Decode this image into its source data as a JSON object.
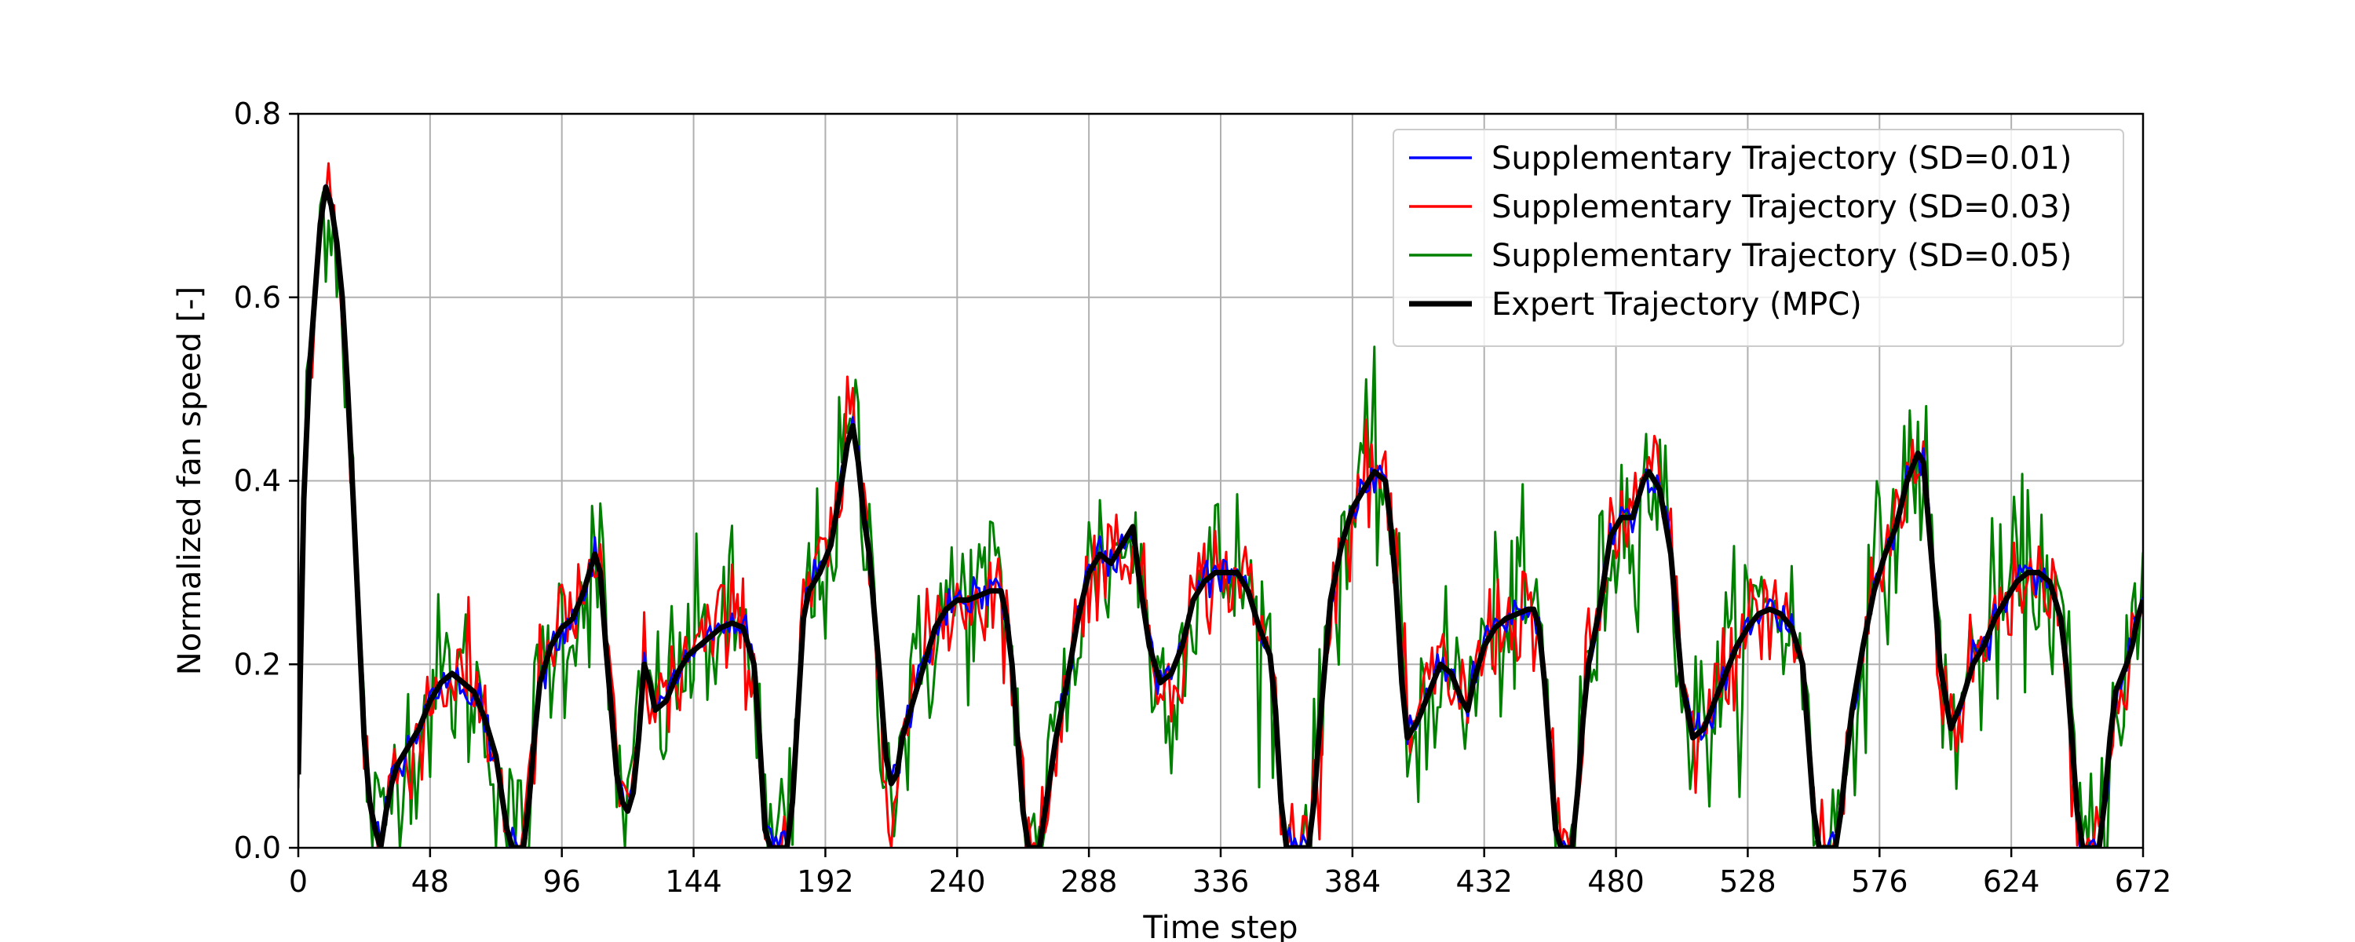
{
  "chart_data": {
    "type": "line",
    "title": "",
    "xlabel": "Time step",
    "ylabel": "Normalized fan speed [-]",
    "xlim": [
      0,
      672
    ],
    "ylim": [
      0,
      0.8
    ],
    "x_ticks": [
      0,
      48,
      96,
      144,
      192,
      240,
      288,
      336,
      384,
      432,
      480,
      528,
      576,
      624,
      672
    ],
    "y_ticks": [
      0.0,
      0.2,
      0.4,
      0.6,
      0.8
    ],
    "x_tick_labels": [
      "0",
      "48",
      "96",
      "144",
      "192",
      "240",
      "288",
      "336",
      "384",
      "432",
      "480",
      "528",
      "576",
      "624",
      "672"
    ],
    "y_tick_labels": [
      "0.0",
      "0.2",
      "0.4",
      "0.6",
      "0.8"
    ],
    "grid": true,
    "legend_position": "top-right",
    "expert": {
      "name": "Expert Trajectory (MPC)",
      "color": "#000000",
      "points": [
        [
          0,
          0.08
        ],
        [
          2,
          0.38
        ],
        [
          4,
          0.52
        ],
        [
          6,
          0.6
        ],
        [
          8,
          0.68
        ],
        [
          10,
          0.72
        ],
        [
          12,
          0.7
        ],
        [
          14,
          0.66
        ],
        [
          16,
          0.6
        ],
        [
          18,
          0.5
        ],
        [
          20,
          0.38
        ],
        [
          22,
          0.25
        ],
        [
          24,
          0.12
        ],
        [
          26,
          0.05
        ],
        [
          28,
          0.02
        ],
        [
          30,
          0.0
        ],
        [
          32,
          0.04
        ],
        [
          34,
          0.07
        ],
        [
          36,
          0.09
        ],
        [
          40,
          0.11
        ],
        [
          44,
          0.13
        ],
        [
          48,
          0.16
        ],
        [
          52,
          0.18
        ],
        [
          56,
          0.19
        ],
        [
          60,
          0.18
        ],
        [
          64,
          0.17
        ],
        [
          68,
          0.14
        ],
        [
          70,
          0.12
        ],
        [
          72,
          0.1
        ],
        [
          74,
          0.06
        ],
        [
          76,
          0.02
        ],
        [
          78,
          0.0
        ],
        [
          82,
          0.0
        ],
        [
          84,
          0.05
        ],
        [
          86,
          0.12
        ],
        [
          88,
          0.18
        ],
        [
          92,
          0.22
        ],
        [
          96,
          0.24
        ],
        [
          100,
          0.25
        ],
        [
          104,
          0.28
        ],
        [
          108,
          0.32
        ],
        [
          110,
          0.3
        ],
        [
          112,
          0.22
        ],
        [
          114,
          0.15
        ],
        [
          116,
          0.08
        ],
        [
          118,
          0.05
        ],
        [
          120,
          0.04
        ],
        [
          122,
          0.06
        ],
        [
          124,
          0.12
        ],
        [
          126,
          0.2
        ],
        [
          128,
          0.18
        ],
        [
          130,
          0.15
        ],
        [
          134,
          0.16
        ],
        [
          138,
          0.19
        ],
        [
          142,
          0.21
        ],
        [
          146,
          0.22
        ],
        [
          150,
          0.23
        ],
        [
          154,
          0.24
        ],
        [
          158,
          0.245
        ],
        [
          162,
          0.24
        ],
        [
          166,
          0.2
        ],
        [
          168,
          0.12
        ],
        [
          170,
          0.02
        ],
        [
          172,
          0.0
        ],
        [
          178,
          0.0
        ],
        [
          180,
          0.05
        ],
        [
          182,
          0.15
        ],
        [
          184,
          0.25
        ],
        [
          186,
          0.28
        ],
        [
          190,
          0.3
        ],
        [
          194,
          0.33
        ],
        [
          198,
          0.4
        ],
        [
          200,
          0.44
        ],
        [
          202,
          0.46
        ],
        [
          204,
          0.42
        ],
        [
          206,
          0.36
        ],
        [
          208,
          0.32
        ],
        [
          210,
          0.25
        ],
        [
          212,
          0.18
        ],
        [
          214,
          0.1
        ],
        [
          216,
          0.07
        ],
        [
          218,
          0.08
        ],
        [
          220,
          0.12
        ],
        [
          224,
          0.16
        ],
        [
          228,
          0.2
        ],
        [
          232,
          0.24
        ],
        [
          236,
          0.26
        ],
        [
          240,
          0.27
        ],
        [
          244,
          0.27
        ],
        [
          248,
          0.275
        ],
        [
          252,
          0.28
        ],
        [
          256,
          0.28
        ],
        [
          258,
          0.25
        ],
        [
          260,
          0.2
        ],
        [
          262,
          0.12
        ],
        [
          264,
          0.04
        ],
        [
          266,
          0.0
        ],
        [
          270,
          0.0
        ],
        [
          272,
          0.04
        ],
        [
          274,
          0.08
        ],
        [
          276,
          0.12
        ],
        [
          280,
          0.18
        ],
        [
          284,
          0.25
        ],
        [
          288,
          0.3
        ],
        [
          292,
          0.32
        ],
        [
          296,
          0.31
        ],
        [
          300,
          0.33
        ],
        [
          304,
          0.35
        ],
        [
          306,
          0.3
        ],
        [
          308,
          0.26
        ],
        [
          310,
          0.22
        ],
        [
          314,
          0.18
        ],
        [
          318,
          0.19
        ],
        [
          322,
          0.22
        ],
        [
          326,
          0.27
        ],
        [
          330,
          0.29
        ],
        [
          334,
          0.3
        ],
        [
          338,
          0.3
        ],
        [
          342,
          0.3
        ],
        [
          346,
          0.28
        ],
        [
          350,
          0.24
        ],
        [
          354,
          0.21
        ],
        [
          356,
          0.15
        ],
        [
          358,
          0.05
        ],
        [
          360,
          0.0
        ],
        [
          368,
          0.0
        ],
        [
          370,
          0.05
        ],
        [
          372,
          0.13
        ],
        [
          374,
          0.2
        ],
        [
          376,
          0.27
        ],
        [
          380,
          0.33
        ],
        [
          384,
          0.37
        ],
        [
          388,
          0.39
        ],
        [
          392,
          0.41
        ],
        [
          396,
          0.4
        ],
        [
          398,
          0.35
        ],
        [
          400,
          0.28
        ],
        [
          402,
          0.18
        ],
        [
          404,
          0.12
        ],
        [
          408,
          0.14
        ],
        [
          412,
          0.17
        ],
        [
          416,
          0.2
        ],
        [
          420,
          0.19
        ],
        [
          424,
          0.16
        ],
        [
          426,
          0.15
        ],
        [
          428,
          0.18
        ],
        [
          432,
          0.22
        ],
        [
          436,
          0.24
        ],
        [
          440,
          0.25
        ],
        [
          444,
          0.255
        ],
        [
          448,
          0.26
        ],
        [
          450,
          0.26
        ],
        [
          452,
          0.24
        ],
        [
          454,
          0.18
        ],
        [
          456,
          0.1
        ],
        [
          458,
          0.02
        ],
        [
          460,
          0.0
        ],
        [
          464,
          0.0
        ],
        [
          466,
          0.06
        ],
        [
          468,
          0.14
        ],
        [
          470,
          0.2
        ],
        [
          474,
          0.26
        ],
        [
          478,
          0.34
        ],
        [
          482,
          0.36
        ],
        [
          486,
          0.36
        ],
        [
          490,
          0.4
        ],
        [
          492,
          0.41
        ],
        [
          496,
          0.39
        ],
        [
          500,
          0.32
        ],
        [
          502,
          0.25
        ],
        [
          504,
          0.18
        ],
        [
          508,
          0.12
        ],
        [
          512,
          0.13
        ],
        [
          516,
          0.16
        ],
        [
          520,
          0.19
        ],
        [
          524,
          0.22
        ],
        [
          528,
          0.24
        ],
        [
          532,
          0.255
        ],
        [
          536,
          0.26
        ],
        [
          540,
          0.255
        ],
        [
          544,
          0.24
        ],
        [
          548,
          0.2
        ],
        [
          550,
          0.12
        ],
        [
          552,
          0.04
        ],
        [
          554,
          0.0
        ],
        [
          560,
          0.0
        ],
        [
          562,
          0.04
        ],
        [
          564,
          0.1
        ],
        [
          566,
          0.15
        ],
        [
          570,
          0.22
        ],
        [
          574,
          0.28
        ],
        [
          578,
          0.32
        ],
        [
          582,
          0.35
        ],
        [
          586,
          0.4
        ],
        [
          590,
          0.43
        ],
        [
          592,
          0.42
        ],
        [
          594,
          0.35
        ],
        [
          596,
          0.28
        ],
        [
          598,
          0.2
        ],
        [
          602,
          0.13
        ],
        [
          606,
          0.16
        ],
        [
          610,
          0.2
        ],
        [
          614,
          0.22
        ],
        [
          618,
          0.25
        ],
        [
          622,
          0.27
        ],
        [
          626,
          0.29
        ],
        [
          630,
          0.3
        ],
        [
          634,
          0.3
        ],
        [
          638,
          0.29
        ],
        [
          642,
          0.25
        ],
        [
          644,
          0.2
        ],
        [
          646,
          0.12
        ],
        [
          648,
          0.04
        ],
        [
          650,
          0.0
        ],
        [
          656,
          0.0
        ],
        [
          658,
          0.05
        ],
        [
          660,
          0.12
        ],
        [
          662,
          0.17
        ],
        [
          666,
          0.2
        ],
        [
          668,
          0.22
        ],
        [
          670,
          0.25
        ],
        [
          672,
          0.27
        ]
      ]
    },
    "series": [
      {
        "name": "Supplementary Trajectory (SD=0.01)",
        "color": "#0000ff",
        "sd": 0.01
      },
      {
        "name": "Supplementary Trajectory (SD=0.03)",
        "color": "#ff0000",
        "sd": 0.03
      },
      {
        "name": "Supplementary Trajectory (SD=0.05)",
        "color": "#008000",
        "sd": 0.05
      }
    ],
    "legend": [
      {
        "name": "Supplementary Trajectory (SD=0.01)",
        "color": "#0000ff"
      },
      {
        "name": "Supplementary Trajectory (SD=0.03)",
        "color": "#ff0000"
      },
      {
        "name": "Supplementary Trajectory (SD=0.05)",
        "color": "#008000"
      },
      {
        "name": "Expert Trajectory (MPC)",
        "color": "#000000"
      }
    ]
  }
}
